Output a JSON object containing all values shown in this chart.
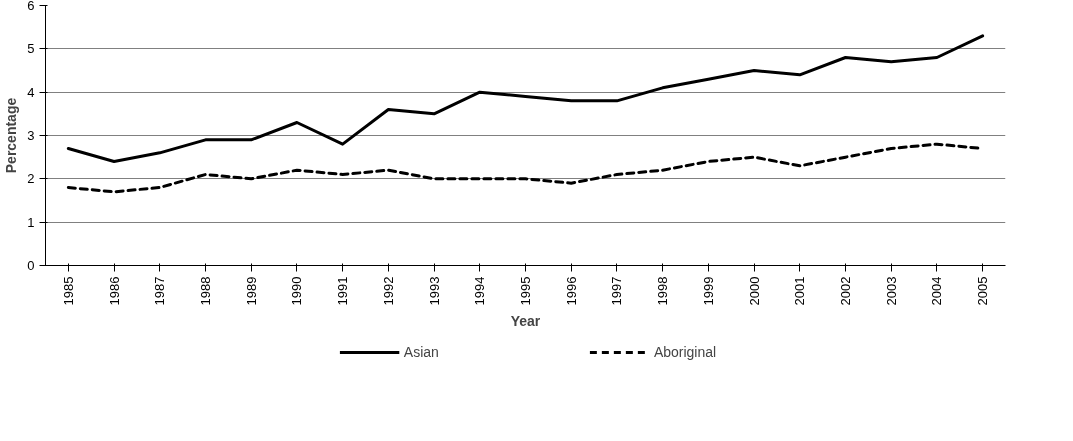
{
  "chart_data": {
    "type": "line",
    "xlabel": "Year",
    "ylabel": "Percentage",
    "categories": [
      "1985",
      "1986",
      "1987",
      "1988",
      "1989",
      "1990",
      "1991",
      "1992",
      "1993",
      "1994",
      "1995",
      "1996",
      "1997",
      "1998",
      "1999",
      "2000",
      "2001",
      "2002",
      "2003",
      "2004",
      "2005"
    ],
    "series": [
      {
        "name": "Asian",
        "color": "#000000",
        "line_style": "solid",
        "values": [
          2.7,
          2.4,
          2.6,
          2.9,
          2.9,
          3.3,
          2.8,
          3.6,
          3.5,
          4.0,
          3.9,
          3.8,
          3.8,
          4.1,
          4.3,
          4.5,
          4.4,
          4.8,
          4.7,
          4.8,
          5.3
        ]
      },
      {
        "name": "Aboriginal",
        "color": "#000000",
        "line_style": "dashed",
        "values": [
          1.8,
          1.7,
          1.8,
          2.1,
          2.0,
          2.2,
          2.1,
          2.2,
          2.0,
          2.0,
          2.0,
          1.9,
          2.1,
          2.2,
          2.4,
          2.5,
          2.3,
          2.5,
          2.7,
          2.8,
          2.7
        ]
      }
    ],
    "ylim": [
      0,
      6
    ],
    "yticks": [
      0,
      1,
      2,
      3,
      4,
      5,
      6
    ],
    "grid": "y",
    "legend": "bottom",
    "marker": "none"
  }
}
